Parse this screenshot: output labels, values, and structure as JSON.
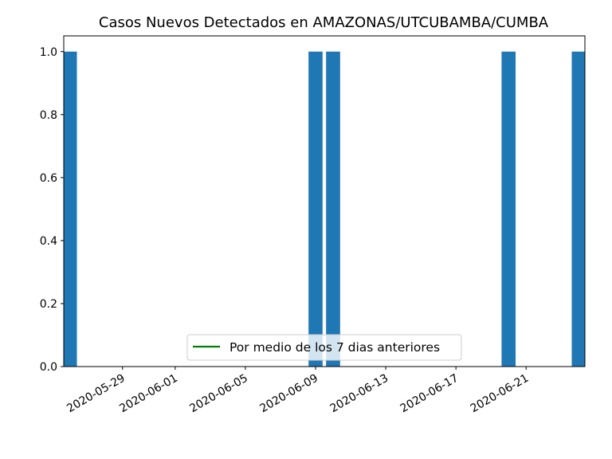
{
  "chart_data": {
    "type": "bar",
    "title": "Casos Nuevos Detectados en AMAZONAS/UTCUBAMBA/CUMBA",
    "xlabel": "",
    "ylabel": "",
    "x_start": "2020-05-26",
    "x_end": "2020-06-24",
    "bars": [
      {
        "date": "2020-05-26",
        "value": 1
      },
      {
        "date": "2020-06-09",
        "value": 1
      },
      {
        "date": "2020-06-10",
        "value": 1
      },
      {
        "date": "2020-06-20",
        "value": 1
      },
      {
        "date": "2020-06-24",
        "value": 1
      }
    ],
    "ylim": [
      0,
      1.05
    ],
    "yticks": [
      "0.0",
      "0.2",
      "0.4",
      "0.6",
      "0.8",
      "1.0"
    ],
    "xticks": [
      "2020-05-29",
      "2020-06-01",
      "2020-06-05",
      "2020-06-09",
      "2020-06-13",
      "2020-06-17",
      "2020-06-21"
    ],
    "bar_color": "#1f77b4",
    "legend": {
      "placement": "lower center",
      "entries": [
        {
          "label": "Por medio de los 7 dias anteriores",
          "color": "#008000"
        }
      ]
    },
    "grid": false
  }
}
